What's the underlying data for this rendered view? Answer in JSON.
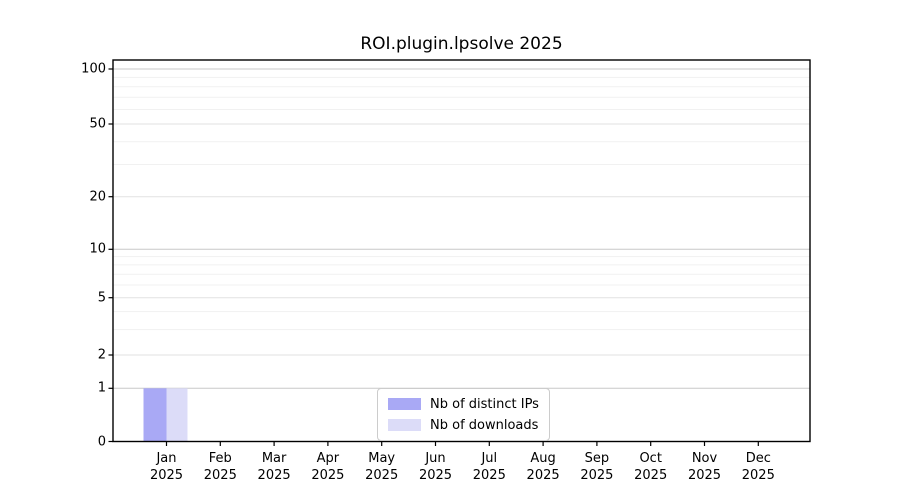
{
  "chart_data": {
    "type": "bar",
    "title": "ROI.plugin.lpsolve 2025",
    "year_label": "2025",
    "categories": [
      "Jan",
      "Feb",
      "Mar",
      "Apr",
      "May",
      "Jun",
      "Jul",
      "Aug",
      "Sep",
      "Oct",
      "Nov",
      "Dec"
    ],
    "series": [
      {
        "name": "Nb of distinct IPs",
        "color": "#a9a9f5",
        "values": [
          1,
          0,
          0,
          0,
          0,
          0,
          0,
          0,
          0,
          0,
          0,
          0
        ]
      },
      {
        "name": "Nb of downloads",
        "color": "#dcdcf8",
        "values": [
          1,
          0,
          0,
          0,
          0,
          0,
          0,
          0,
          0,
          0,
          0,
          0
        ]
      }
    ],
    "yscale": "log1p",
    "yticks": [
      0,
      1,
      2,
      5,
      10,
      20,
      50,
      100
    ],
    "minor_gridlines": [
      3,
      4,
      6,
      7,
      8,
      9,
      30,
      40,
      60,
      70,
      80,
      90
    ],
    "ylim": [
      0,
      113
    ],
    "xlabel": "",
    "ylabel": "",
    "grid": "horizontal",
    "legend_position": "lower center"
  }
}
